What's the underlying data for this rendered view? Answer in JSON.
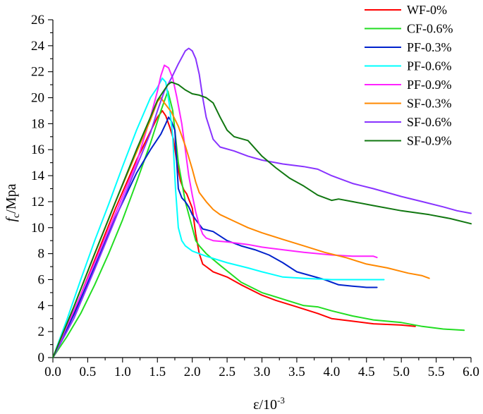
{
  "chart_data": {
    "type": "line",
    "title": "",
    "xlabel_symbol": "ε/10",
    "xlabel_exponent": "-3",
    "ylabel_symbol": "f",
    "ylabel_subscript": "c",
    "ylabel_unit": "/Mpa",
    "xlim": [
      0,
      6.0
    ],
    "ylim": [
      0,
      26
    ],
    "xticks": [
      "0.0",
      "0.5",
      "1.0",
      "1.5",
      "2.0",
      "2.5",
      "3.0",
      "3.5",
      "4.0",
      "4.5",
      "5.0",
      "5.5",
      "6.0"
    ],
    "yticks": [
      "0",
      "2",
      "4",
      "6",
      "8",
      "10",
      "12",
      "14",
      "16",
      "18",
      "20",
      "22",
      "24",
      "26"
    ],
    "grid": false,
    "legend_position": "top-right",
    "series": [
      {
        "name": "WF-0%",
        "color": "#ff0000",
        "points": [
          [
            0,
            0
          ],
          [
            0.3,
            3.5
          ],
          [
            0.6,
            7.5
          ],
          [
            0.9,
            11.5
          ],
          [
            1.2,
            15.2
          ],
          [
            1.4,
            17.4
          ],
          [
            1.5,
            18.5
          ],
          [
            1.57,
            19.0
          ],
          [
            1.62,
            18.6
          ],
          [
            1.68,
            17.7
          ],
          [
            1.73,
            16.8
          ],
          [
            1.78,
            15.0
          ],
          [
            1.83,
            13.6
          ],
          [
            1.88,
            12.9
          ],
          [
            1.92,
            12.6
          ],
          [
            2.0,
            11.5
          ],
          [
            2.05,
            9.5
          ],
          [
            2.1,
            8.0
          ],
          [
            2.15,
            7.2
          ],
          [
            2.2,
            7.0
          ],
          [
            2.3,
            6.6
          ],
          [
            2.5,
            6.2
          ],
          [
            2.7,
            5.6
          ],
          [
            3.0,
            4.8
          ],
          [
            3.2,
            4.4
          ],
          [
            3.5,
            3.9
          ],
          [
            3.8,
            3.4
          ],
          [
            4.0,
            3.0
          ],
          [
            4.3,
            2.8
          ],
          [
            4.6,
            2.6
          ],
          [
            5.0,
            2.5
          ],
          [
            5.2,
            2.4
          ]
        ]
      },
      {
        "name": "CF-0.6%",
        "color": "#22dd22",
        "points": [
          [
            0,
            0
          ],
          [
            0.2,
            1.6
          ],
          [
            0.4,
            3.4
          ],
          [
            0.6,
            5.6
          ],
          [
            0.8,
            8.0
          ],
          [
            1.0,
            10.6
          ],
          [
            1.2,
            13.5
          ],
          [
            1.4,
            16.5
          ],
          [
            1.55,
            19.0
          ],
          [
            1.65,
            20.5
          ],
          [
            1.72,
            19.0
          ],
          [
            1.8,
            15.0
          ],
          [
            1.9,
            12.0
          ],
          [
            2.0,
            10.0
          ],
          [
            2.05,
            9.0
          ],
          [
            2.1,
            8.6
          ],
          [
            2.2,
            8.0
          ],
          [
            2.4,
            7.1
          ],
          [
            2.7,
            5.8
          ],
          [
            3.0,
            5.0
          ],
          [
            3.3,
            4.5
          ],
          [
            3.6,
            4.0
          ],
          [
            3.8,
            3.9
          ],
          [
            4.0,
            3.6
          ],
          [
            4.3,
            3.2
          ],
          [
            4.6,
            2.9
          ],
          [
            5.0,
            2.7
          ],
          [
            5.3,
            2.4
          ],
          [
            5.6,
            2.2
          ],
          [
            5.9,
            2.1
          ]
        ]
      },
      {
        "name": "PF-0.3%",
        "color": "#0022cc",
        "points": [
          [
            0,
            0
          ],
          [
            0.3,
            3.3
          ],
          [
            0.6,
            7.0
          ],
          [
            0.9,
            10.8
          ],
          [
            1.2,
            14.2
          ],
          [
            1.4,
            16.0
          ],
          [
            1.55,
            17.2
          ],
          [
            1.62,
            18.0
          ],
          [
            1.66,
            18.5
          ],
          [
            1.7,
            18.2
          ],
          [
            1.75,
            17.5
          ],
          [
            1.8,
            13.0
          ],
          [
            1.85,
            12.3
          ],
          [
            1.9,
            12.0
          ],
          [
            1.95,
            11.6
          ],
          [
            2.0,
            11.0
          ],
          [
            2.05,
            10.6
          ],
          [
            2.15,
            9.9
          ],
          [
            2.3,
            9.7
          ],
          [
            2.5,
            9.0
          ],
          [
            2.7,
            8.6
          ],
          [
            2.9,
            8.3
          ],
          [
            3.1,
            7.9
          ],
          [
            3.3,
            7.3
          ],
          [
            3.5,
            6.6
          ],
          [
            3.7,
            6.3
          ],
          [
            3.9,
            6.0
          ],
          [
            4.1,
            5.6
          ],
          [
            4.3,
            5.5
          ],
          [
            4.5,
            5.4
          ],
          [
            4.65,
            5.4
          ]
        ]
      },
      {
        "name": "PF-0.6%",
        "color": "#00ffff",
        "points": [
          [
            0,
            0
          ],
          [
            0.2,
            2.9
          ],
          [
            0.4,
            6.0
          ],
          [
            0.6,
            9.0
          ],
          [
            0.8,
            11.8
          ],
          [
            1.0,
            14.7
          ],
          [
            1.2,
            17.5
          ],
          [
            1.4,
            20.0
          ],
          [
            1.5,
            20.8
          ],
          [
            1.57,
            21.5
          ],
          [
            1.62,
            21.2
          ],
          [
            1.67,
            19.5
          ],
          [
            1.72,
            17.0
          ],
          [
            1.76,
            13.0
          ],
          [
            1.8,
            10.0
          ],
          [
            1.85,
            9.0
          ],
          [
            1.9,
            8.6
          ],
          [
            2.0,
            8.2
          ],
          [
            2.2,
            7.8
          ],
          [
            2.5,
            7.3
          ],
          [
            2.8,
            6.9
          ],
          [
            3.0,
            6.6
          ],
          [
            3.3,
            6.2
          ],
          [
            3.6,
            6.1
          ],
          [
            4.0,
            6.0
          ],
          [
            4.4,
            6.0
          ],
          [
            4.75,
            6.0
          ]
        ]
      },
      {
        "name": "PF-0.9%",
        "color": "#ff22ff",
        "points": [
          [
            0,
            0
          ],
          [
            0.3,
            3.6
          ],
          [
            0.6,
            7.3
          ],
          [
            0.9,
            11.1
          ],
          [
            1.2,
            15.0
          ],
          [
            1.4,
            18.5
          ],
          [
            1.5,
            20.5
          ],
          [
            1.55,
            21.7
          ],
          [
            1.6,
            22.5
          ],
          [
            1.66,
            22.3
          ],
          [
            1.72,
            21.5
          ],
          [
            1.78,
            20.0
          ],
          [
            1.85,
            18.0
          ],
          [
            1.9,
            16.0
          ],
          [
            1.95,
            14.0
          ],
          [
            2.0,
            12.5
          ],
          [
            2.05,
            11.2
          ],
          [
            2.1,
            10.2
          ],
          [
            2.15,
            9.5
          ],
          [
            2.2,
            9.2
          ],
          [
            2.3,
            9.0
          ],
          [
            2.5,
            8.9
          ],
          [
            2.8,
            8.7
          ],
          [
            3.0,
            8.5
          ],
          [
            3.3,
            8.3
          ],
          [
            3.6,
            8.1
          ],
          [
            4.0,
            7.9
          ],
          [
            4.3,
            7.8
          ],
          [
            4.6,
            7.8
          ],
          [
            4.65,
            7.7
          ]
        ]
      },
      {
        "name": "SF-0.3%",
        "color": "#ff8800",
        "points": [
          [
            0,
            0
          ],
          [
            0.3,
            3.9
          ],
          [
            0.6,
            8.0
          ],
          [
            0.9,
            12.0
          ],
          [
            1.2,
            15.8
          ],
          [
            1.4,
            18.3
          ],
          [
            1.5,
            19.7
          ],
          [
            1.55,
            20.0
          ],
          [
            1.6,
            19.6
          ],
          [
            1.7,
            18.9
          ],
          [
            1.8,
            17.8
          ],
          [
            1.9,
            16.3
          ],
          [
            2.0,
            14.5
          ],
          [
            2.05,
            13.5
          ],
          [
            2.1,
            12.7
          ],
          [
            2.2,
            12.0
          ],
          [
            2.3,
            11.4
          ],
          [
            2.4,
            11.0
          ],
          [
            2.6,
            10.5
          ],
          [
            2.8,
            10.0
          ],
          [
            3.0,
            9.6
          ],
          [
            3.3,
            9.1
          ],
          [
            3.6,
            8.6
          ],
          [
            3.9,
            8.1
          ],
          [
            4.2,
            7.7
          ],
          [
            4.5,
            7.2
          ],
          [
            4.8,
            6.9
          ],
          [
            5.1,
            6.5
          ],
          [
            5.3,
            6.3
          ],
          [
            5.4,
            6.1
          ]
        ]
      },
      {
        "name": "SF-0.6%",
        "color": "#8833ff",
        "points": [
          [
            0,
            0
          ],
          [
            0.3,
            3.0
          ],
          [
            0.6,
            6.8
          ],
          [
            0.9,
            10.7
          ],
          [
            1.2,
            14.7
          ],
          [
            1.4,
            17.3
          ],
          [
            1.5,
            19.0
          ],
          [
            1.6,
            20.5
          ],
          [
            1.7,
            21.5
          ],
          [
            1.8,
            22.6
          ],
          [
            1.9,
            23.6
          ],
          [
            1.95,
            23.8
          ],
          [
            2.0,
            23.6
          ],
          [
            2.05,
            23.0
          ],
          [
            2.1,
            21.8
          ],
          [
            2.15,
            20.0
          ],
          [
            2.2,
            18.5
          ],
          [
            2.3,
            16.8
          ],
          [
            2.4,
            16.2
          ],
          [
            2.6,
            15.9
          ],
          [
            2.8,
            15.5
          ],
          [
            3.0,
            15.2
          ],
          [
            3.3,
            14.9
          ],
          [
            3.6,
            14.7
          ],
          [
            3.8,
            14.5
          ],
          [
            4.0,
            14.0
          ],
          [
            4.3,
            13.4
          ],
          [
            4.6,
            13.0
          ],
          [
            5.0,
            12.4
          ],
          [
            5.3,
            12.0
          ],
          [
            5.6,
            11.6
          ],
          [
            5.8,
            11.3
          ],
          [
            6.0,
            11.1
          ]
        ]
      },
      {
        "name": "SF-0.9%",
        "color": "#117711",
        "points": [
          [
            0,
            0
          ],
          [
            0.3,
            3.9
          ],
          [
            0.6,
            8.0
          ],
          [
            0.9,
            12.0
          ],
          [
            1.2,
            16.0
          ],
          [
            1.4,
            18.5
          ],
          [
            1.5,
            19.8
          ],
          [
            1.6,
            20.6
          ],
          [
            1.65,
            21.0
          ],
          [
            1.7,
            21.2
          ],
          [
            1.8,
            21.0
          ],
          [
            1.9,
            20.6
          ],
          [
            2.0,
            20.3
          ],
          [
            2.1,
            20.2
          ],
          [
            2.2,
            20.0
          ],
          [
            2.3,
            19.6
          ],
          [
            2.4,
            18.5
          ],
          [
            2.5,
            17.5
          ],
          [
            2.6,
            17.0
          ],
          [
            2.8,
            16.7
          ],
          [
            3.0,
            15.5
          ],
          [
            3.2,
            14.6
          ],
          [
            3.4,
            13.8
          ],
          [
            3.6,
            13.2
          ],
          [
            3.8,
            12.5
          ],
          [
            4.0,
            12.1
          ],
          [
            4.1,
            12.2
          ],
          [
            4.3,
            12.0
          ],
          [
            4.6,
            11.7
          ],
          [
            5.0,
            11.3
          ],
          [
            5.4,
            11.0
          ],
          [
            5.7,
            10.7
          ],
          [
            6.0,
            10.3
          ]
        ]
      }
    ]
  }
}
